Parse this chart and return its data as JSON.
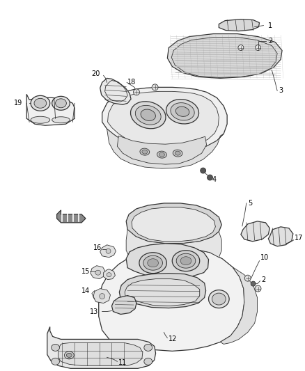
{
  "bg_color": "#ffffff",
  "fig_width": 4.38,
  "fig_height": 5.33,
  "dpi": 100,
  "line_color": "#333333",
  "lw": 0.9,
  "label_fs": 7.0
}
